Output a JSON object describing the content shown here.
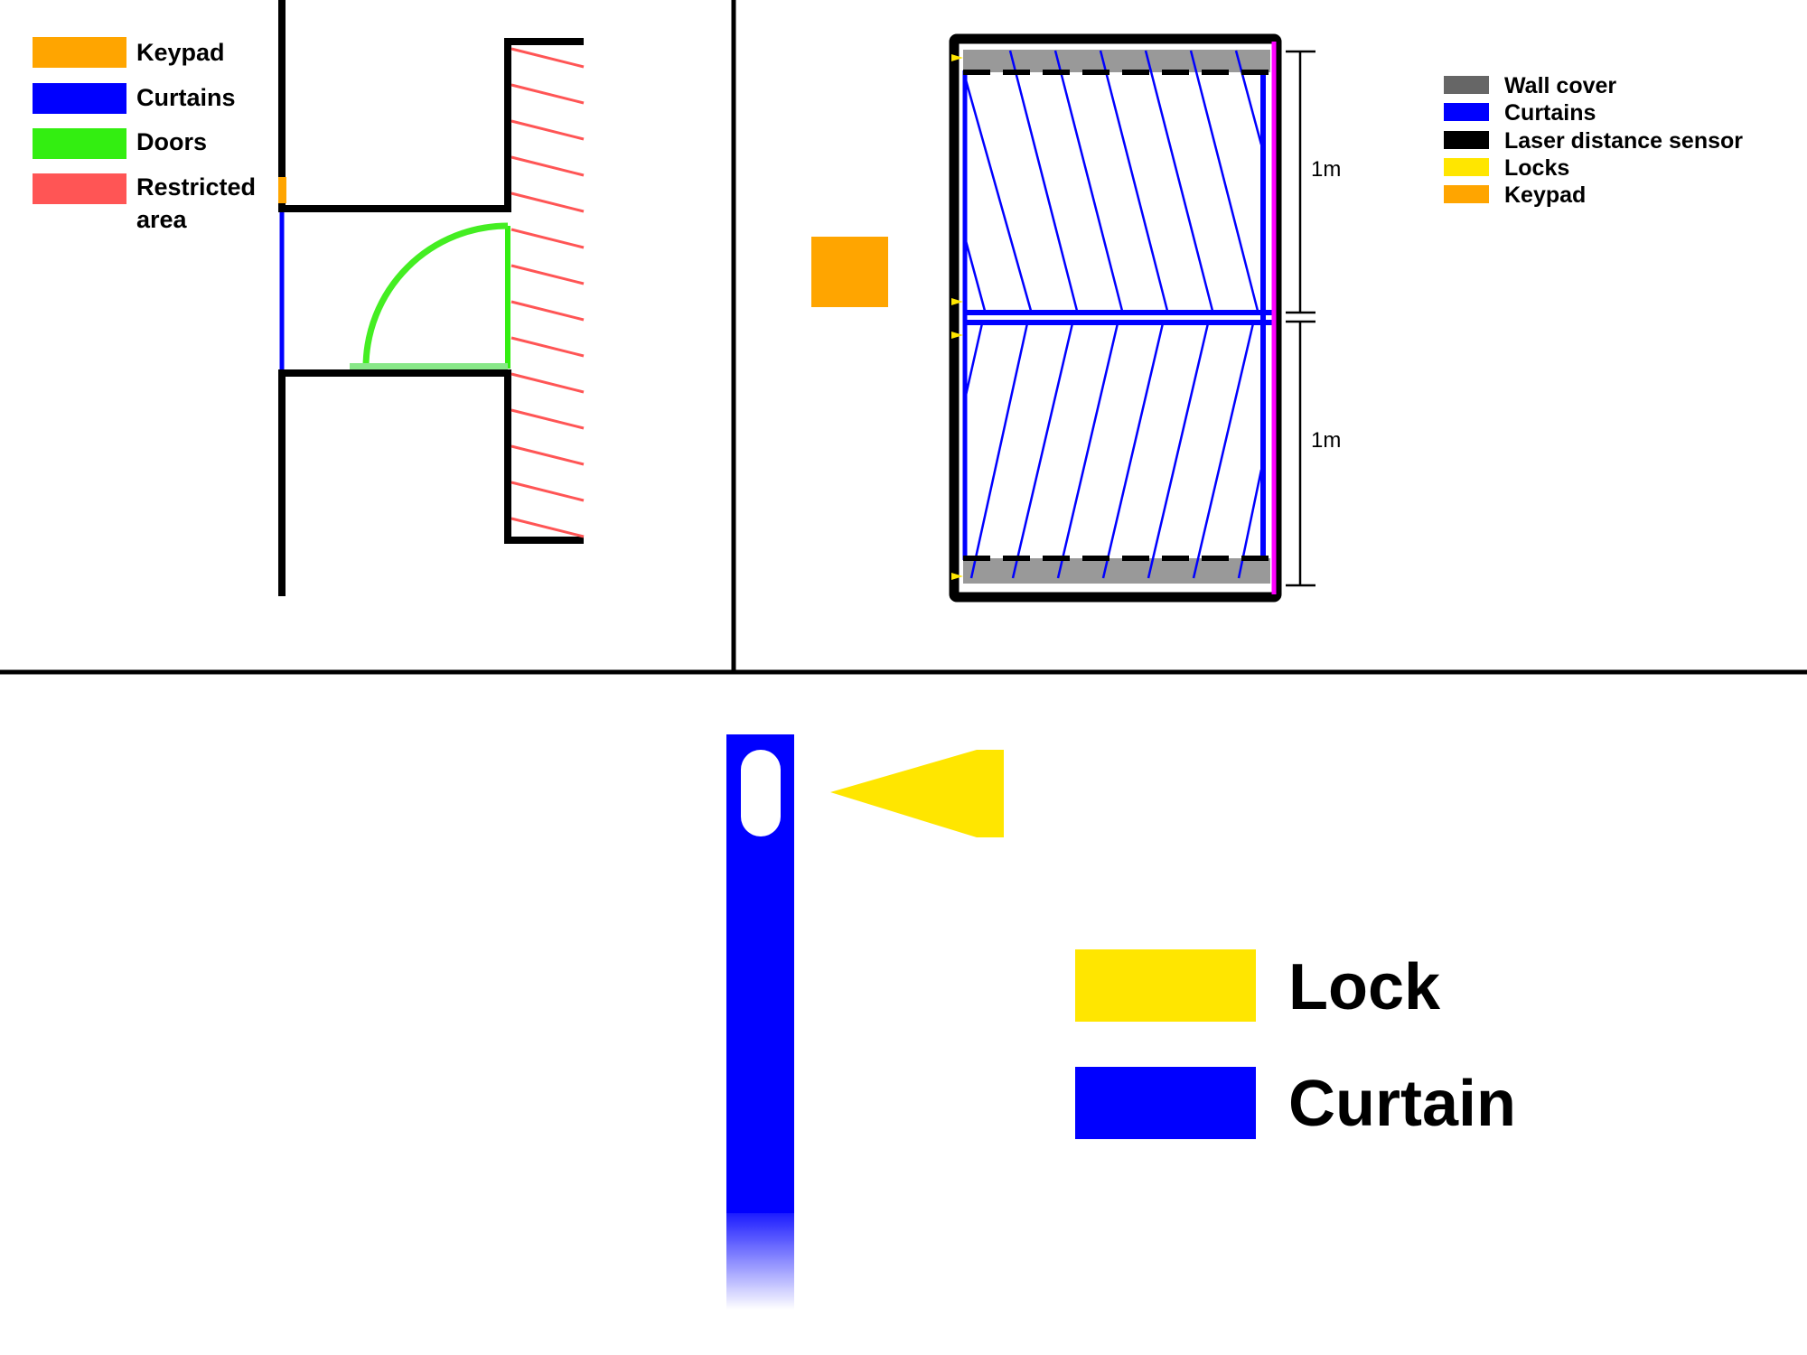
{
  "panel_plan": {
    "legend": [
      {
        "label": "Keypad",
        "color": "#FFA500"
      },
      {
        "label": "Curtains",
        "color": "#0000FF"
      },
      {
        "label": "Doors",
        "color": "#33EE11"
      },
      {
        "label": "Restricted",
        "label_line2": "area",
        "color": "#FF5555"
      }
    ]
  },
  "panel_curtain_unit": {
    "legend": [
      {
        "label": "Wall cover",
        "color": "#666666"
      },
      {
        "label": "Curtains",
        "color": "#0000FF"
      },
      {
        "label": "Laser distance sensor",
        "color": "#000000"
      },
      {
        "label": "Locks",
        "color": "#FFE600"
      },
      {
        "label": "Keypad",
        "color": "#FFA500"
      }
    ],
    "dimensions": {
      "upper": "1m",
      "lower": "1m"
    },
    "colors": {
      "frame": "#000000",
      "wall_cover": "#999999",
      "curtain": "#0000FF",
      "sensor_edge": "#FF00FF",
      "lock": "#FFE600",
      "keypad": "#FFA500"
    }
  },
  "panel_lock_detail": {
    "legend": [
      {
        "label": "Lock",
        "color": "#FFE600"
      },
      {
        "label": "Curtain",
        "color": "#0000FF"
      }
    ]
  }
}
